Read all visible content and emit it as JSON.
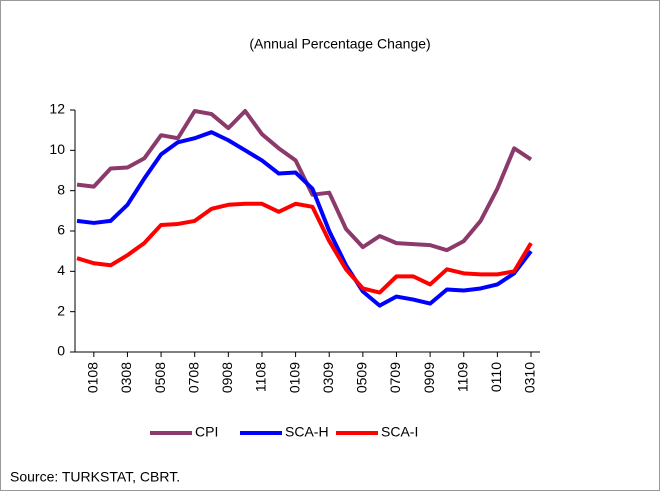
{
  "chart_data": {
    "type": "line",
    "title": "(Annual Percentage Change)",
    "source": "Source: TURKSTAT, CBRT.",
    "categories": [
      null,
      "0108",
      null,
      "0308",
      null,
      "0508",
      null,
      "0708",
      null,
      "0908",
      null,
      "1108",
      null,
      "0109",
      null,
      "0309",
      null,
      "0509",
      null,
      "0709",
      null,
      "0909",
      null,
      "1109",
      null,
      "0110",
      null,
      "0310"
    ],
    "series": [
      {
        "name": "CPI",
        "color": "#8b3a6b",
        "values": [
          8.3,
          8.2,
          9.1,
          9.15,
          9.6,
          10.75,
          10.6,
          11.95,
          11.8,
          11.1,
          11.95,
          10.8,
          10.1,
          9.5,
          7.8,
          7.9,
          6.1,
          5.2,
          5.75,
          5.4,
          5.35,
          5.3,
          5.05,
          5.5,
          6.5,
          8.1,
          10.1,
          9.55
        ]
      },
      {
        "name": "SCA-H",
        "color": "#0000ff",
        "values": [
          6.5,
          6.4,
          6.5,
          7.3,
          8.6,
          9.8,
          10.4,
          10.6,
          10.9,
          10.5,
          10.0,
          9.5,
          8.85,
          8.9,
          8.1,
          6.0,
          4.3,
          3.0,
          2.3,
          2.75,
          2.6,
          2.4,
          3.1,
          3.05,
          3.15,
          3.35,
          3.9,
          5.0
        ]
      },
      {
        "name": "SCA-I",
        "color": "#ff0000",
        "values": [
          4.65,
          4.4,
          4.3,
          4.8,
          5.4,
          6.3,
          6.35,
          6.5,
          7.1,
          7.3,
          7.35,
          7.35,
          6.95,
          7.35,
          7.2,
          5.5,
          4.1,
          3.15,
          2.95,
          3.75,
          3.75,
          3.35,
          4.1,
          3.9,
          3.85,
          3.85,
          4.0,
          5.4
        ]
      }
    ],
    "ylim": [
      0,
      12
    ],
    "yticks": [
      0,
      2,
      4,
      6,
      8,
      10,
      12
    ],
    "grid": false,
    "legend": "bottom"
  }
}
